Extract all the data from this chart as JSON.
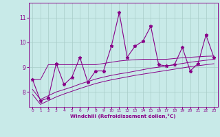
{
  "x": [
    0,
    1,
    2,
    3,
    4,
    5,
    6,
    7,
    8,
    9,
    10,
    11,
    12,
    13,
    14,
    15,
    16,
    17,
    18,
    19,
    20,
    21,
    22,
    23
  ],
  "y_main": [
    8.5,
    7.65,
    7.75,
    9.15,
    8.3,
    8.6,
    9.4,
    8.4,
    8.85,
    8.85,
    9.85,
    11.2,
    9.4,
    9.85,
    10.05,
    10.65,
    9.1,
    9.05,
    9.1,
    9.8,
    8.85,
    9.15,
    10.3,
    9.4
  ],
  "y_flat": [
    8.5,
    8.5,
    9.1,
    9.1,
    9.1,
    9.1,
    9.1,
    9.1,
    9.1,
    9.15,
    9.2,
    9.25,
    9.28,
    9.3,
    9.32,
    9.32,
    9.32,
    9.32,
    9.35,
    9.38,
    9.4,
    9.42,
    9.44,
    9.45
  ],
  "y_smooth1": [
    8.1,
    7.7,
    7.85,
    8.0,
    8.1,
    8.2,
    8.32,
    8.42,
    8.52,
    8.6,
    8.67,
    8.73,
    8.78,
    8.84,
    8.9,
    8.96,
    9.0,
    9.05,
    9.1,
    9.15,
    9.2,
    9.24,
    9.28,
    9.32
  ],
  "y_smooth2": [
    7.9,
    7.5,
    7.65,
    7.8,
    7.92,
    8.03,
    8.14,
    8.24,
    8.34,
    8.42,
    8.49,
    8.55,
    8.61,
    8.67,
    8.72,
    8.77,
    8.82,
    8.87,
    8.92,
    8.97,
    9.02,
    9.06,
    9.1,
    9.14
  ],
  "line_color": "#880088",
  "bg_color": "#c8eae8",
  "grid_color": "#a8ccc8",
  "xlabel": "Windchill (Refroidissement éolien,°C)",
  "ylim": [
    7.4,
    11.6
  ],
  "xlim": [
    -0.5,
    23.5
  ],
  "yticks": [
    8,
    9,
    10,
    11
  ],
  "xticks": [
    0,
    1,
    2,
    3,
    4,
    5,
    6,
    7,
    8,
    9,
    10,
    11,
    12,
    13,
    14,
    15,
    16,
    17,
    18,
    19,
    20,
    21,
    22,
    23
  ]
}
